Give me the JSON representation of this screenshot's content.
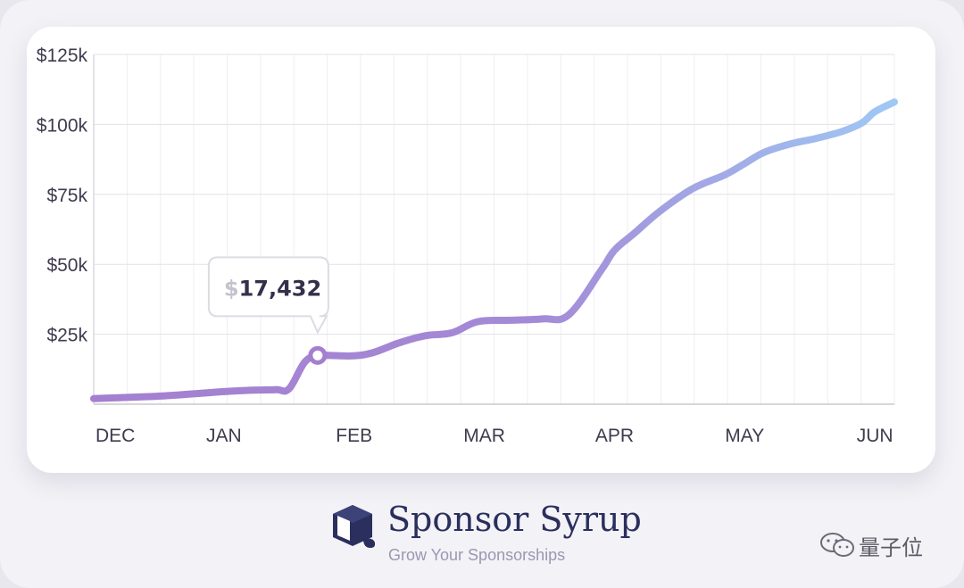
{
  "chart_data": {
    "type": "line",
    "title": "",
    "xlabel": "",
    "ylabel": "",
    "x_tick_labels": [
      "DEC",
      "JAN",
      "FEB",
      "MAR",
      "APR",
      "MAY",
      "JUN"
    ],
    "y_tick_labels": [
      "$125k",
      "$100k",
      "$75k",
      "$50k",
      "$25k"
    ],
    "y_ticks": [
      125000,
      100000,
      75000,
      50000,
      25000
    ],
    "ylim": [
      0,
      125000
    ],
    "grid": true,
    "gradient_colors": [
      "#a47fd0",
      "#9fc8f5"
    ],
    "series": [
      {
        "x": [
          0,
          0.3,
          0.55,
          0.85,
          1.0,
          1.2,
          1.4,
          1.5,
          1.62,
          1.72,
          1.82,
          2.0,
          2.15,
          2.35,
          2.55,
          2.75,
          2.95,
          3.2,
          3.45,
          3.65,
          3.9,
          4.0,
          4.15,
          4.35,
          4.6,
          4.85,
          5.0,
          5.15,
          5.35,
          5.55,
          5.75,
          5.9,
          6.0,
          6.15
        ],
        "values": [
          2000,
          2500,
          3000,
          4000,
          4500,
          5000,
          5200,
          5500,
          15000,
          17432,
          17400,
          17300,
          18500,
          22000,
          24500,
          25500,
          29500,
          30000,
          30500,
          32000,
          48000,
          55000,
          61000,
          69000,
          77000,
          82000,
          86000,
          90000,
          93000,
          95000,
          97500,
          100500,
          104500,
          108000
        ]
      }
    ],
    "highlight": {
      "x": 1.72,
      "value": 17432,
      "label": "17,432",
      "currency_symbol": "$"
    }
  },
  "brand": {
    "name": "Sponsor Syrup",
    "tagline": "Grow Your Sponsorships",
    "logo_icon": "syrup-cube-icon"
  },
  "watermark": {
    "text": "量子位",
    "icon": "wechat-icon"
  }
}
